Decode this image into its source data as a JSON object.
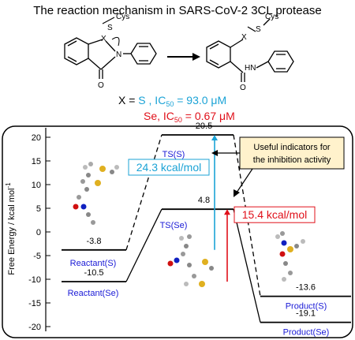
{
  "title": "The reaction mechanism in SARS-CoV-2 3CL protease",
  "scheme": {
    "reactant_labels": {
      "x": "X",
      "s": "S",
      "cys": "Cys",
      "n": "N",
      "o": "O"
    },
    "product_labels": {
      "x": "X",
      "s": "S",
      "cys": "Cys",
      "hn": "HN",
      "o": "O"
    }
  },
  "ic50_lines": [
    {
      "prefix": "X = ",
      "element": "S",
      "sep": " , IC",
      "sub": "50",
      "value": " = 93.0 μM",
      "color": "#1ba3d6"
    },
    {
      "prefix": "",
      "element": "Se",
      "sep": ", IC",
      "sub": "50",
      "value": " = 0.67 μM",
      "color": "#e0101a"
    }
  ],
  "chart_data": {
    "type": "energy-profile",
    "ylabel": "Free Energy / kcal mol",
    "ylabel_sup": "-1",
    "ylim": [
      -21,
      22
    ],
    "yticks": [
      20,
      15,
      10,
      5,
      0,
      -5,
      -10,
      -15,
      -20
    ],
    "states": [
      "Reactant",
      "TS",
      "Product"
    ],
    "series": [
      {
        "name": "S",
        "color": "#000000",
        "dash": true,
        "values": [
          -3.8,
          20.5,
          -13.6
        ],
        "labels": [
          "Reactant(S)",
          "TS(S)",
          "Product(S)"
        ]
      },
      {
        "name": "Se",
        "color": "#000000",
        "dash": false,
        "values": [
          -10.5,
          4.8,
          -19.1
        ],
        "labels": [
          "Reactant(Se)",
          "TS(Se)",
          "Product(Se)"
        ]
      }
    ],
    "barriers": [
      {
        "label": "24.3 kcal/mol",
        "from": -3.8,
        "to": 20.5,
        "color": "#1ba3d6"
      },
      {
        "label": "15.4 kcal/mol",
        "from": -10.5,
        "to": 4.8,
        "color": "#e0101a"
      }
    ],
    "annotation": [
      "Useful indicators for",
      "the inhibition activity"
    ]
  },
  "colors": {
    "annotation_bg": "#fff2cc",
    "blue_label": "#1a1ad6"
  }
}
